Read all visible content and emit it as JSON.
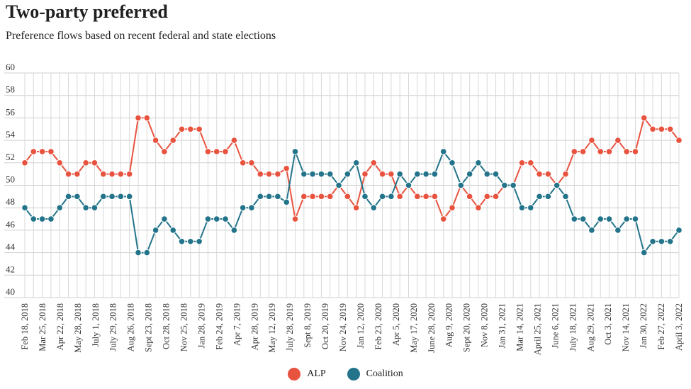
{
  "chart_data": {
    "type": "line",
    "title": "Two-party preferred",
    "subtitle": "Preference flows based on recent federal and state elections",
    "xlabel": "",
    "ylabel": "",
    "ylim": [
      40,
      60
    ],
    "yticks": [
      40,
      42,
      44,
      46,
      48,
      50,
      52,
      54,
      56,
      58,
      60
    ],
    "grid": true,
    "legend_position": "bottom-center",
    "x_tick_labels": [
      "Feb 18, 2018",
      "Mar 25, 2018",
      "Apr 22, 2018",
      "May 28, 2018",
      "July 1, 2018",
      "July 29, 2018",
      "Aug 26, 2018",
      "Sept 23, 2018",
      "Oct 28, 2018",
      "Nov 25, 2018",
      "Jan 28, 2019",
      "Feb 24, 2019",
      "Apr 7, 2019",
      "Apr 28, 2019",
      "May 12, 2019",
      "July 28, 2019",
      "Sept 8, 2019",
      "Oct 20, 2019",
      "Nov 24, 2019",
      "Jan 12, 2020",
      "Feb 23, 2020",
      "Apr 5, 2020",
      "May 17, 2020",
      "June 28, 2020",
      "Aug 9, 2020",
      "Sept 20, 2020",
      "Nov 8, 2020",
      "Jan 31, 2021",
      "Mar 14, 2021",
      "April 25, 2021",
      "June 6, 2021",
      "July 18, 2021",
      "Aug 29, 2021",
      "Oct 3, 2021",
      "Nov 14, 2021",
      "Jan 30, 2022",
      "Feb 27, 2022",
      "April 3, 2022"
    ],
    "series": [
      {
        "name": "ALP",
        "color": "#e8533f",
        "values": [
          52,
          53,
          53,
          53,
          52,
          51,
          51,
          52,
          52,
          51,
          51,
          51,
          51,
          56,
          56,
          54,
          53,
          54,
          55,
          55,
          55,
          53,
          53,
          53,
          54,
          52,
          52,
          51,
          51,
          51,
          51.5,
          47,
          49,
          49,
          49,
          49,
          50,
          49,
          48,
          51,
          52,
          51,
          51,
          49,
          50,
          49,
          49,
          49,
          47,
          48,
          50,
          49,
          48,
          49,
          49,
          50,
          50,
          52,
          52,
          51,
          51,
          50,
          51,
          53,
          53,
          54,
          53,
          53,
          54,
          53,
          53,
          56,
          55,
          55,
          55,
          54
        ]
      },
      {
        "name": "Coalition",
        "color": "#23748a",
        "values": [
          48,
          47,
          47,
          47,
          48,
          49,
          49,
          48,
          48,
          49,
          49,
          49,
          49,
          44,
          44,
          46,
          47,
          46,
          45,
          45,
          45,
          47,
          47,
          47,
          46,
          48,
          48,
          49,
          49,
          49,
          48.5,
          53,
          51,
          51,
          51,
          51,
          50,
          51,
          52,
          49,
          48,
          49,
          49,
          51,
          50,
          51,
          51,
          51,
          53,
          52,
          50,
          51,
          52,
          51,
          51,
          50,
          50,
          48,
          48,
          49,
          49,
          50,
          49,
          47,
          47,
          46,
          47,
          47,
          46,
          47,
          47,
          44,
          45,
          45,
          45,
          46
        ]
      }
    ]
  },
  "legend": {
    "items": [
      {
        "label": "ALP",
        "color": "#e8533f"
      },
      {
        "label": "Coalition",
        "color": "#23748a"
      }
    ]
  }
}
